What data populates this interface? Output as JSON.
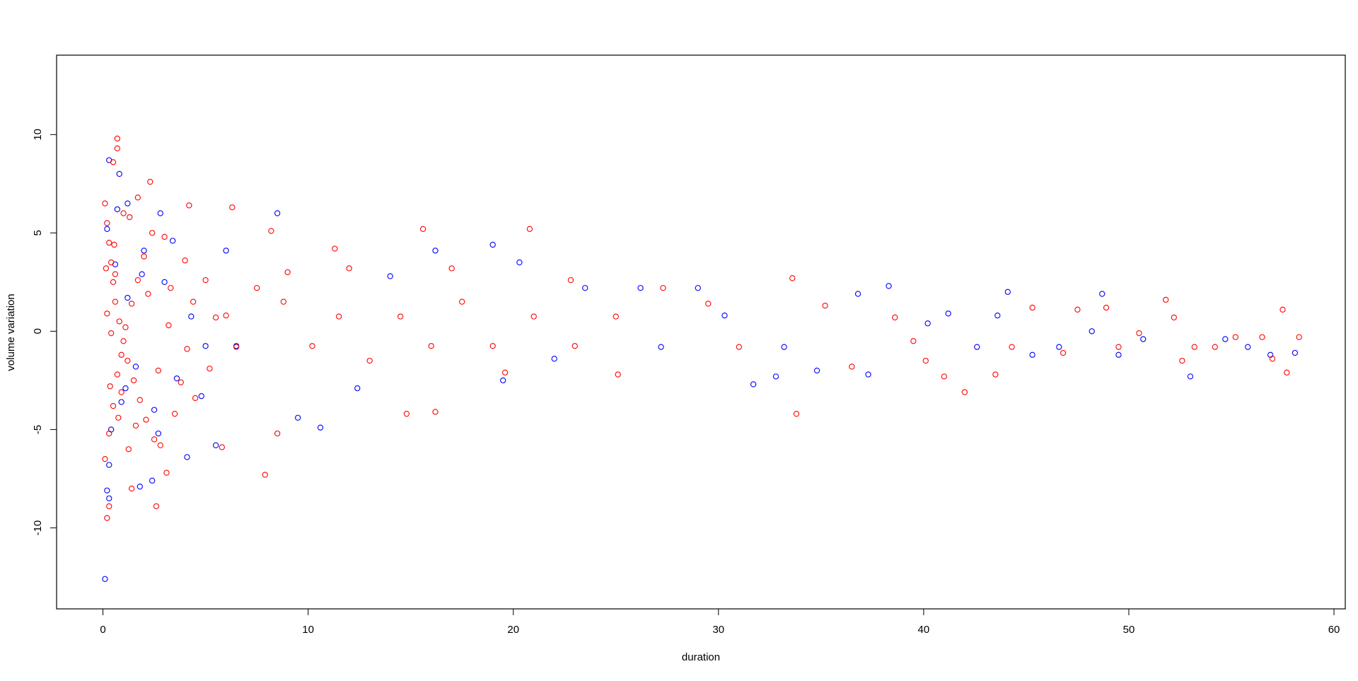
{
  "chart_data": {
    "type": "scatter",
    "xlabel": "duration",
    "ylabel": "volume variation",
    "xlim": [
      -2.26,
      60.55
    ],
    "ylim": [
      -14.12,
      14.04
    ],
    "xticks": [
      0,
      10,
      20,
      30,
      40,
      50,
      60
    ],
    "yticks": [
      -10,
      -5,
      0,
      5,
      10
    ],
    "marker": "open-circle",
    "series": [
      {
        "color": "#0000ff",
        "x": [
          0.1,
          0.8,
          0.3,
          0.2,
          0.3,
          2.4,
          1.8,
          19,
          20.3,
          16.2,
          8.5,
          10.6,
          9.5,
          19.5,
          31.7,
          32.8,
          44.1,
          48.7,
          53,
          50.7,
          54.7,
          55.8,
          56.9,
          58.1,
          40.2,
          41.2,
          38.3,
          29,
          26.2,
          23.5,
          34.8,
          37.3,
          45.3,
          49.5,
          48.2,
          43.6,
          36.8,
          1.2,
          2.8,
          4.1,
          5.5,
          6,
          12.4,
          14,
          22,
          27.2,
          30.3,
          33.2,
          42.6,
          46.6,
          0.2,
          0.4,
          0.6,
          0.9,
          1.2,
          1.6,
          2.0,
          2.5,
          3.0,
          3.6,
          4.3,
          5.0,
          0.3,
          0.7,
          1.1,
          1.9,
          2.7,
          3.4,
          4.8,
          6.5
        ],
        "values": [
          -12.6,
          8,
          8.7,
          -8.1,
          -8.5,
          -7.6,
          -7.9,
          4.4,
          3.5,
          4.1,
          6,
          -4.9,
          -4.4,
          -2.5,
          -2.7,
          -2.3,
          2,
          1.9,
          -2.3,
          -0.4,
          -0.4,
          -0.8,
          -1.2,
          -1.1,
          0.4,
          0.9,
          2.3,
          2.2,
          2.2,
          2.2,
          -2,
          -2.2,
          -1.2,
          -1.2,
          0,
          0.8,
          1.9,
          6.5,
          6,
          -6.4,
          -5.8,
          4.1,
          -2.9,
          2.8,
          -1.4,
          -0.8,
          0.8,
          -0.8,
          -0.8,
          -0.8,
          5.2,
          -5.0,
          3.4,
          -3.6,
          1.7,
          -1.8,
          4.1,
          -4.0,
          2.5,
          -2.4,
          0.75,
          -0.75,
          -6.8,
          6.2,
          -2.9,
          2.9,
          -5.2,
          4.6,
          -3.3,
          -0.75
        ]
      },
      {
        "color": "#ff0000",
        "x": [
          0.7,
          0.7,
          0.5,
          2.6,
          0.2,
          0.3,
          7.9,
          20.8,
          15.6,
          33.8,
          14.8,
          16.2,
          6.3,
          42,
          57.7,
          58.3,
          57.5,
          51.8,
          52.2,
          47.5,
          52.6,
          55.2,
          56.5,
          57,
          45.3,
          48.9,
          43.5,
          41,
          40.1,
          38.6,
          35.2,
          33.6,
          27.3,
          22.8,
          12,
          11.3,
          8.5,
          5.8,
          3.1,
          1.4,
          2.3,
          1.7,
          4.2,
          8.2,
          9,
          17,
          19.6,
          25.1,
          29.5,
          31,
          36.5,
          39.5,
          44.3,
          46.8,
          49.5,
          50.5,
          53.2,
          54.2,
          0.1,
          0.2,
          0.3,
          0.4,
          0.5,
          0.6,
          0.8,
          1.0,
          1.2,
          1.5,
          1.8,
          2.1,
          2.5,
          3.0,
          3.5,
          4.0,
          4.5,
          5.0,
          0.1,
          0.3,
          0.5,
          0.7,
          0.9,
          1.1,
          1.4,
          1.7,
          2.0,
          2.4,
          2.8,
          3.3,
          3.8,
          4.4,
          5.2,
          6.0,
          0.2,
          0.4,
          0.6,
          0.9,
          1.3,
          1.6,
          2.2,
          2.7,
          3.2,
          4.1,
          5.5,
          6.5,
          7.5,
          8.8,
          10.2,
          11.5,
          13,
          14.5,
          16,
          17.5,
          19,
          21,
          23,
          25,
          0.15,
          0.35,
          0.55,
          0.75,
          1.0,
          1.25
        ],
        "values": [
          9.8,
          9.3,
          8.6,
          -8.9,
          -9.5,
          -8.9,
          -7.3,
          5.2,
          5.2,
          -4.2,
          -4.2,
          -4.1,
          6.3,
          -3.1,
          -2.1,
          -0.3,
          1.1,
          1.6,
          0.7,
          1.1,
          -1.5,
          -0.3,
          -0.3,
          -1.4,
          1.2,
          1.2,
          -2.2,
          -2.3,
          -1.5,
          0.7,
          1.3,
          2.7,
          2.2,
          2.6,
          3.2,
          4.2,
          -5.2,
          -5.9,
          -7.2,
          -8.0,
          7.6,
          6.8,
          6.4,
          5.1,
          3,
          3.2,
          -2.1,
          -2.2,
          1.4,
          -0.8,
          -1.8,
          -0.5,
          -0.8,
          -1.1,
          -0.8,
          -0.1,
          -0.8,
          -0.8,
          6.5,
          5.5,
          4.5,
          3.5,
          2.5,
          1.5,
          0.5,
          -0.5,
          -1.5,
          -2.5,
          -3.5,
          -4.5,
          -5.5,
          4.8,
          -4.2,
          3.6,
          -3.4,
          2.6,
          -6.5,
          -5.2,
          -3.8,
          -2.2,
          -1.2,
          0.2,
          1.4,
          2.6,
          3.8,
          5.0,
          -5.8,
          2.2,
          -2.6,
          1.5,
          -1.9,
          0.8,
          0.9,
          -0.1,
          2.9,
          -3.1,
          5.8,
          -4.8,
          1.9,
          -2.0,
          0.3,
          -0.9,
          0.7,
          -0.8,
          2.2,
          1.5,
          -0.75,
          0.75,
          -1.5,
          0.75,
          -0.75,
          1.5,
          -0.75,
          0.75,
          -0.75,
          0.75,
          3.2,
          -2.8,
          4.4,
          -4.4,
          6.0,
          -6.0
        ]
      }
    ]
  }
}
